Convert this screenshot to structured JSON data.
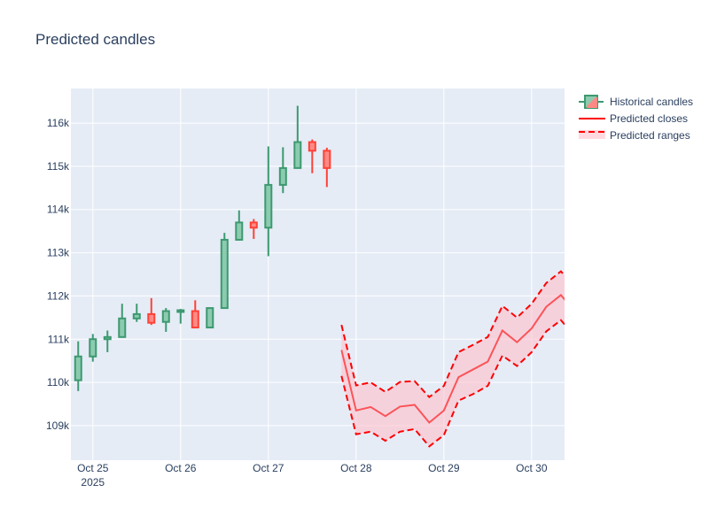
{
  "chart_data": {
    "type": "candlestick",
    "title": "Predicted candles",
    "xlabel": "",
    "ylabel": "",
    "x_range": [
      "2025-10-24 18:00",
      "2025-10-30 09:00"
    ],
    "y_range": [
      108200,
      116800
    ],
    "x_ticks": [
      {
        "date": "2025-10-25 00:00",
        "label": "Oct 25",
        "sublabel": "2025"
      },
      {
        "date": "2025-10-26 00:00",
        "label": "Oct 26"
      },
      {
        "date": "2025-10-27 00:00",
        "label": "Oct 27"
      },
      {
        "date": "2025-10-28 00:00",
        "label": "Oct 28"
      },
      {
        "date": "2025-10-29 00:00",
        "label": "Oct 29"
      },
      {
        "date": "2025-10-30 00:00",
        "label": "Oct 30"
      }
    ],
    "y_ticks": [
      {
        "value": 109000,
        "label": "109k"
      },
      {
        "value": 110000,
        "label": "110k"
      },
      {
        "value": 111000,
        "label": "111k"
      },
      {
        "value": 112000,
        "label": "112k"
      },
      {
        "value": 113000,
        "label": "113k"
      },
      {
        "value": 114000,
        "label": "114k"
      },
      {
        "value": 115000,
        "label": "115k"
      },
      {
        "value": 116000,
        "label": "116k"
      }
    ],
    "grid": true,
    "legend_position": "top-right",
    "colors": {
      "plot_bg": "#e5ecf6",
      "grid": "#ffffff",
      "increasing": "#3d9970",
      "increasing_fill": "#8ccbaf",
      "decreasing": "#ff4136",
      "decreasing_fill": "#ff8a85",
      "predicted_line": "#ff0000",
      "predicted_range": "#ff0000",
      "band_fill": "#ffc0cb"
    },
    "legend": [
      {
        "key": "candles",
        "label": "Historical candles"
      },
      {
        "key": "closes",
        "label": "Predicted closes"
      },
      {
        "key": "ranges",
        "label": "Predicted ranges"
      }
    ],
    "candles": [
      {
        "date": "2025-10-24 20:00",
        "open": 110050,
        "high": 110950,
        "low": 109800,
        "close": 110600
      },
      {
        "date": "2025-10-25 00:00",
        "open": 110600,
        "high": 111120,
        "low": 110480,
        "close": 111000
      },
      {
        "date": "2025-10-25 04:00",
        "open": 111000,
        "high": 111200,
        "low": 110700,
        "close": 111050
      },
      {
        "date": "2025-10-25 08:00",
        "open": 111050,
        "high": 111820,
        "low": 111050,
        "close": 111480
      },
      {
        "date": "2025-10-25 12:00",
        "open": 111480,
        "high": 111820,
        "low": 111400,
        "close": 111580
      },
      {
        "date": "2025-10-25 16:00",
        "open": 111580,
        "high": 111950,
        "low": 111330,
        "close": 111380
      },
      {
        "date": "2025-10-25 20:00",
        "open": 111400,
        "high": 111720,
        "low": 111170,
        "close": 111650
      },
      {
        "date": "2025-10-26 00:00",
        "open": 111630,
        "high": 111700,
        "low": 111360,
        "close": 111670
      },
      {
        "date": "2025-10-26 04:00",
        "open": 111650,
        "high": 111900,
        "low": 111250,
        "close": 111270
      },
      {
        "date": "2025-10-26 08:00",
        "open": 111270,
        "high": 111720,
        "low": 111270,
        "close": 111720
      },
      {
        "date": "2025-10-26 12:00",
        "open": 111720,
        "high": 113460,
        "low": 111720,
        "close": 113300
      },
      {
        "date": "2025-10-26 16:00",
        "open": 113300,
        "high": 113980,
        "low": 113280,
        "close": 113700
      },
      {
        "date": "2025-10-26 20:00",
        "open": 113700,
        "high": 113780,
        "low": 113320,
        "close": 113580
      },
      {
        "date": "2025-10-27 00:00",
        "open": 113580,
        "high": 115460,
        "low": 112920,
        "close": 114570
      },
      {
        "date": "2025-10-27 04:00",
        "open": 114570,
        "high": 115440,
        "low": 114380,
        "close": 114960
      },
      {
        "date": "2025-10-27 08:00",
        "open": 114960,
        "high": 116400,
        "low": 114960,
        "close": 115560
      },
      {
        "date": "2025-10-27 12:00",
        "open": 115560,
        "high": 115620,
        "low": 114840,
        "close": 115360
      },
      {
        "date": "2025-10-27 16:00",
        "open": 115360,
        "high": 115430,
        "low": 114520,
        "close": 114960
      }
    ],
    "predicted": [
      {
        "date": "2025-10-27 20:00",
        "close": 110750,
        "high": 111330,
        "low": 110150
      },
      {
        "date": "2025-10-28 00:00",
        "close": 109350,
        "high": 109930,
        "low": 108800
      },
      {
        "date": "2025-10-28 04:00",
        "close": 109430,
        "high": 110000,
        "low": 108860
      },
      {
        "date": "2025-10-28 08:00",
        "close": 109220,
        "high": 109780,
        "low": 108650
      },
      {
        "date": "2025-10-28 12:00",
        "close": 109440,
        "high": 110010,
        "low": 108860
      },
      {
        "date": "2025-10-28 16:00",
        "close": 109480,
        "high": 110030,
        "low": 108920
      },
      {
        "date": "2025-10-28 20:00",
        "close": 109070,
        "high": 109660,
        "low": 108520
      },
      {
        "date": "2025-10-29 00:00",
        "close": 109350,
        "high": 109920,
        "low": 108780
      },
      {
        "date": "2025-10-29 04:00",
        "close": 110120,
        "high": 110700,
        "low": 109580
      },
      {
        "date": "2025-10-29 08:00",
        "close": 110300,
        "high": 110870,
        "low": 109730
      },
      {
        "date": "2025-10-29 12:00",
        "close": 110480,
        "high": 111050,
        "low": 109920
      },
      {
        "date": "2025-10-29 16:00",
        "close": 111200,
        "high": 111770,
        "low": 110620
      },
      {
        "date": "2025-10-29 20:00",
        "close": 110930,
        "high": 111500,
        "low": 110380
      },
      {
        "date": "2025-10-30 00:00",
        "close": 111250,
        "high": 111820,
        "low": 110700
      },
      {
        "date": "2025-10-30 04:00",
        "close": 111750,
        "high": 112300,
        "low": 111180
      },
      {
        "date": "2025-10-30 08:00",
        "close": 112020,
        "high": 112570,
        "low": 111440
      },
      {
        "date": "2025-10-30 12:00",
        "close": 111630,
        "high": 112200,
        "low": 111050
      }
    ]
  }
}
